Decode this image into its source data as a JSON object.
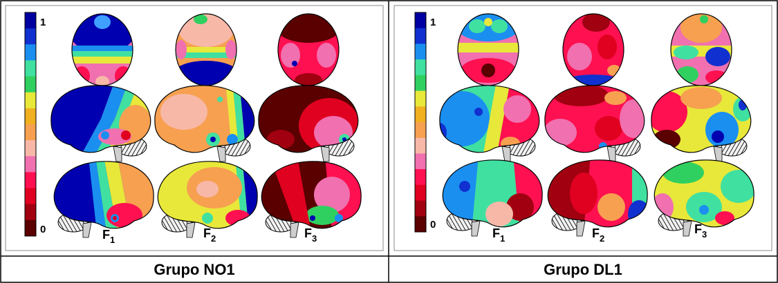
{
  "panels": [
    {
      "label": "Grupo NO1",
      "scale": {
        "top": "1",
        "bottom": "0"
      },
      "factors": [
        {
          "letter": "F",
          "sub": "1"
        },
        {
          "letter": "F",
          "sub": "2"
        },
        {
          "letter": "F",
          "sub": "3"
        }
      ]
    },
    {
      "label": "Grupo DL1",
      "scale": {
        "top": "1",
        "bottom": "0"
      },
      "factors": [
        {
          "letter": "F",
          "sub": "1"
        },
        {
          "letter": "F",
          "sub": "2"
        },
        {
          "letter": "F",
          "sub": "3"
        }
      ]
    }
  ],
  "colors": {
    "scale": [
      "#0000a0",
      "#1030d0",
      "#1a8ff0",
      "#40e0a0",
      "#30d060",
      "#e8e83a",
      "#f0b020",
      "#f6a050",
      "#f8b8a8",
      "#f070b0",
      "#ff1050",
      "#e00020",
      "#a00010",
      "#5a0000"
    ]
  }
}
